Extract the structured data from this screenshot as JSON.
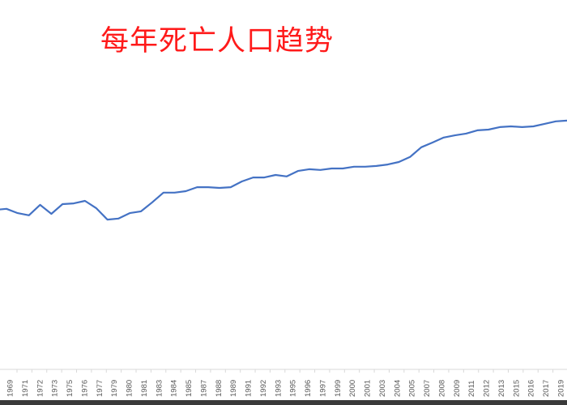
{
  "chart_data": {
    "type": "line",
    "title": "每年死亡人口趋势",
    "xlabel": "",
    "ylabel": "",
    "ylim": [
      0,
      1400
    ],
    "grid": false,
    "legend": "none",
    "line_color": "#4472c4",
    "title_color": "#ff1a1a",
    "tick_labels": [
      "1969",
      "1971",
      "1972",
      "1973",
      "1975",
      "1976",
      "1977",
      "1979",
      "1980",
      "1981",
      "1983",
      "1984",
      "1985",
      "1987",
      "1988",
      "1989",
      "1991",
      "1992",
      "1993",
      "1995",
      "1996",
      "1997",
      "1999",
      "2000",
      "2001",
      "2003",
      "2004",
      "2005",
      "2007",
      "2008",
      "2009",
      "2011",
      "2012",
      "2013",
      "2015",
      "2016",
      "2017",
      "2019"
    ],
    "x": [
      1968,
      1969,
      1970,
      1971,
      1972,
      1973,
      1974,
      1975,
      1976,
      1977,
      1978,
      1979,
      1980,
      1981,
      1982,
      1983,
      1984,
      1985,
      1986,
      1987,
      1988,
      1989,
      1990,
      1991,
      1992,
      1993,
      1994,
      1995,
      1996,
      1997,
      1998,
      1999,
      2000,
      2001,
      2002,
      2003,
      2004,
      2005,
      2006,
      2007,
      2008,
      2009,
      2010,
      2011,
      2012,
      2013,
      2014,
      2015,
      2016,
      2017,
      2018,
      2019
    ],
    "series": [
      {
        "values": [
          640,
          644,
          627,
          618,
          660,
          624,
          663,
          666,
          676,
          647,
          601,
          605,
          627,
          634,
          670,
          709,
          709,
          715,
          731,
          731,
          728,
          731,
          754,
          770,
          770,
          780,
          774,
          796,
          803,
          800,
          806,
          806,
          813,
          813,
          816,
          822,
          832,
          852,
          891,
          910,
          930,
          939,
          946,
          959,
          962,
          972,
          975,
          972,
          975,
          985,
          995,
          998
        ]
      }
    ]
  }
}
